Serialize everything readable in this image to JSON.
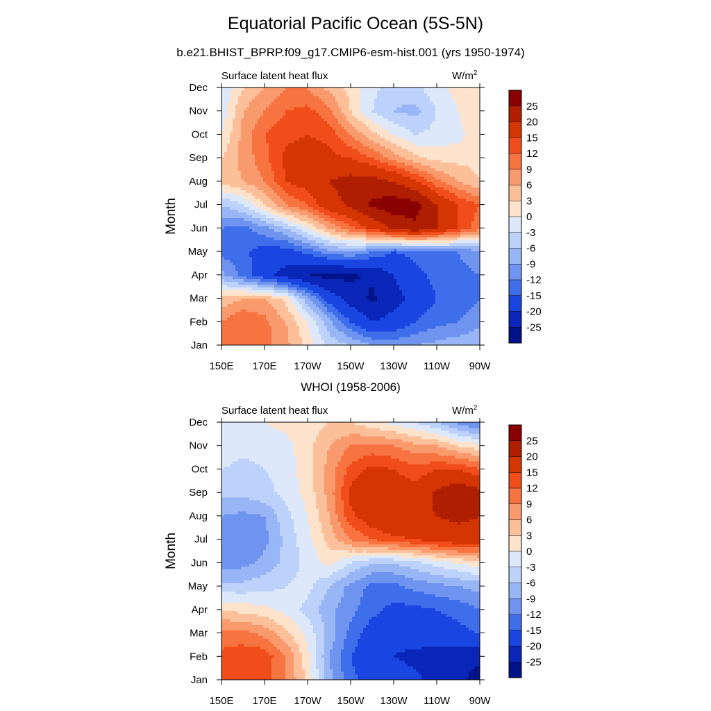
{
  "figure": {
    "title": "Equatorial Pacific Ocean (5S-5N)",
    "subtitle": "b.e21.BHIST_BPRP.f09_g17.CMIP6-esm-hist.001 (yrs 1950-1974)"
  },
  "colorbar": {
    "levels": [
      "25",
      "20",
      "15",
      "12",
      "9",
      "6",
      "3",
      "0",
      "-3",
      "-6",
      "-9",
      "-12",
      "-15",
      "-20",
      "-25"
    ],
    "colors": [
      "#8b0000",
      "#b01e00",
      "#d53500",
      "#f04d1b",
      "#f7733f",
      "#f99a6d",
      "#fbbf99",
      "#fde3cb",
      "#dde9fb",
      "#bcd2fa",
      "#98b6f5",
      "#6f94f0",
      "#3f6eea",
      "#1946e1",
      "#0926b8",
      "#02138a"
    ]
  },
  "chart_data": [
    {
      "type": "heatmap",
      "panel_title": "",
      "left_label": "Surface latent heat flux",
      "units_base": "W/m",
      "units_sup": "2",
      "ylabel": "Month",
      "xlabel": "",
      "x_ticks": [
        "150E",
        "170E",
        "170W",
        "150W",
        "130W",
        "110W",
        "90W"
      ],
      "y_ticks": [
        "Jan",
        "Feb",
        "Mar",
        "Apr",
        "May",
        "Jun",
        "Jul",
        "Aug",
        "Sep",
        "Oct",
        "Nov",
        "Dec"
      ],
      "xlim_deg_east": [
        150,
        270
      ],
      "cols_deg_east": [
        150,
        160,
        170,
        180,
        190,
        200,
        210,
        220,
        230,
        240,
        250,
        260,
        270
      ],
      "months": [
        "Jan",
        "Feb",
        "Mar",
        "Apr",
        "May",
        "Jun",
        "Jul",
        "Aug",
        "Sep",
        "Oct",
        "Nov",
        "Dec"
      ],
      "values": [
        [
          9,
          12,
          10,
          7,
          2,
          -4,
          -6,
          -9,
          -10,
          -9,
          -8,
          -7,
          -6
        ],
        [
          9,
          12,
          10,
          6,
          0,
          -8,
          -15,
          -20,
          -18,
          -15,
          -13,
          -12,
          -10
        ],
        [
          4,
          6,
          6,
          2,
          -8,
          -17,
          -22,
          -26,
          -22,
          -18,
          -15,
          -14,
          -12
        ],
        [
          -8,
          -13,
          -18,
          -22,
          -25,
          -27,
          -26,
          -24,
          -20,
          -16,
          -14,
          -13,
          -12
        ],
        [
          -13,
          -14,
          -17,
          -17,
          -14,
          -10,
          -9,
          -12,
          -15,
          -14,
          -13,
          -12,
          -10
        ],
        [
          -12,
          -13,
          -10,
          -6,
          0,
          6,
          11,
          16,
          21,
          24,
          20,
          15,
          10
        ],
        [
          -6,
          -3,
          3,
          9,
          12,
          18,
          21,
          26,
          28,
          27,
          20,
          15,
          12
        ],
        [
          4,
          6,
          9,
          15,
          17,
          20,
          22,
          22,
          20,
          16,
          10,
          6,
          3
        ],
        [
          3,
          7,
          11,
          16,
          17,
          16,
          15,
          12,
          8,
          4,
          2,
          2,
          2
        ],
        [
          0,
          7,
          12,
          14,
          15,
          14,
          9,
          4,
          0,
          -3,
          -2,
          -1,
          2
        ],
        [
          -2,
          6,
          9,
          12,
          13,
          10,
          3,
          -3,
          -6,
          -7,
          -3,
          0,
          3
        ],
        [
          -3,
          3,
          6,
          9,
          9,
          5,
          2,
          -2,
          -5,
          -4,
          -1,
          1,
          2
        ]
      ]
    },
    {
      "type": "heatmap",
      "panel_title": "WHOI (1958-2006)",
      "left_label": "Surface latent heat flux",
      "units_base": "W/m",
      "units_sup": "2",
      "ylabel": "Month",
      "xlabel": "",
      "x_ticks": [
        "150E",
        "170E",
        "170W",
        "150W",
        "130W",
        "110W",
        "90W"
      ],
      "y_ticks": [
        "Jan",
        "Feb",
        "Mar",
        "Apr",
        "May",
        "Jun",
        "Jul",
        "Aug",
        "Sep",
        "Oct",
        "Nov",
        "Dec"
      ],
      "xlim_deg_east": [
        150,
        270
      ],
      "cols_deg_east": [
        150,
        160,
        170,
        180,
        190,
        200,
        210,
        220,
        230,
        240,
        250,
        260,
        270
      ],
      "months": [
        "Jan",
        "Feb",
        "Mar",
        "Apr",
        "May",
        "Jun",
        "Jul",
        "Aug",
        "Sep",
        "Oct",
        "Nov",
        "Dec"
      ],
      "values": [
        [
          14,
          15,
          13,
          9,
          2,
          -8,
          -14,
          -17,
          -18,
          -19,
          -22,
          -24,
          -27
        ],
        [
          13,
          14,
          14,
          9,
          1,
          -9,
          -15,
          -18,
          -20,
          -21,
          -22,
          -23,
          -24
        ],
        [
          10,
          10,
          8,
          4,
          -1,
          -7,
          -13,
          -17,
          -19,
          -18,
          -17,
          -16,
          -15
        ],
        [
          3,
          2,
          1,
          -1,
          -4,
          -8,
          -11,
          -14,
          -16,
          -16,
          -15,
          -14,
          -12
        ],
        [
          -5,
          -5,
          -4,
          -3,
          -2,
          -6,
          -10,
          -13,
          -13,
          -11,
          -10,
          -9,
          -8
        ],
        [
          -11,
          -10,
          -8,
          -5,
          -2,
          1,
          -3,
          -6,
          -6,
          -4,
          -2,
          0,
          2
        ],
        [
          -11,
          -12,
          -10,
          -5,
          -1,
          4,
          9,
          12,
          14,
          15,
          17,
          18,
          18
        ],
        [
          -9,
          -10,
          -9,
          -4,
          0,
          6,
          14,
          18,
          20,
          19,
          20,
          21,
          20
        ],
        [
          -5,
          -5,
          -4,
          -2,
          1,
          7,
          16,
          19,
          18,
          17,
          21,
          24,
          22
        ],
        [
          -3,
          -4,
          -3,
          -2,
          2,
          7,
          13,
          16,
          15,
          13,
          15,
          15,
          12
        ],
        [
          -1,
          -2,
          -2,
          -1,
          2,
          6,
          9,
          10,
          9,
          7,
          6,
          3,
          1
        ],
        [
          -1,
          0,
          0,
          1,
          1,
          3,
          3,
          1,
          -1,
          -3,
          -6,
          -10,
          -13
        ]
      ]
    }
  ]
}
